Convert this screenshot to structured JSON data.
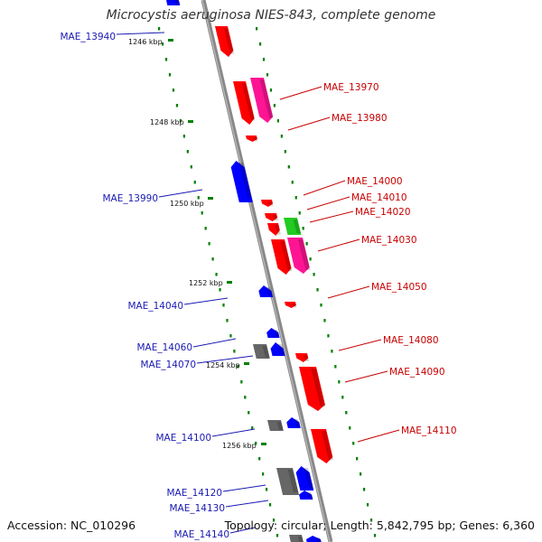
{
  "title": "Microcystis aeruginosa NIES-843, complete genome",
  "accession": "Accession: NC_010296",
  "topology": "Topology: circular; Length: 5,842,795 bp; Genes: 6,360",
  "colors": {
    "forward_gene": "#ff0000",
    "forward_gene_alt": "#ff1493",
    "reverse_gene": "#0000ff",
    "rna_gene": "#22cc22",
    "other_gene": "#666666",
    "backbone": "#888888",
    "tick": "#008000",
    "label_forward": "#c80000",
    "label_reverse": "#1a1ab4"
  },
  "scale_ticks": [
    {
      "label": "1246 kbp"
    },
    {
      "label": "1248 kbp"
    },
    {
      "label": "1250 kbp"
    },
    {
      "label": "1252 kbp"
    },
    {
      "label": "1254 kbp"
    },
    {
      "label": "1256 kbp"
    }
  ],
  "reverse_gene_labels": [
    "MAE_13940",
    "MAE_13990",
    "MAE_14040",
    "MAE_14060",
    "MAE_14070",
    "MAE_14100",
    "MAE_14120",
    "MAE_14130",
    "MAE_14140"
  ],
  "forward_gene_labels": [
    "MAE_13970",
    "MAE_13980",
    "MAE_14000",
    "MAE_14010",
    "MAE_14020",
    "MAE_14030",
    "MAE_14050",
    "MAE_14080",
    "MAE_14090",
    "MAE_14110"
  ]
}
